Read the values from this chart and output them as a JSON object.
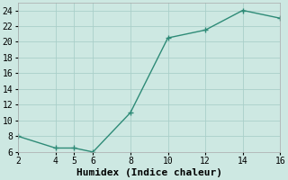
{
  "x": [
    2,
    4,
    5,
    6,
    8,
    10,
    12,
    14,
    16
  ],
  "y": [
    8,
    6.5,
    6.5,
    6,
    11,
    20.5,
    21.5,
    24,
    23
  ],
  "line_color": "#2e8b77",
  "marker": "+",
  "marker_size": 4,
  "marker_color": "#2e8b77",
  "xlabel": "Humidex (Indice chaleur)",
  "xlim": [
    2,
    16
  ],
  "ylim": [
    6,
    25
  ],
  "xticks": [
    2,
    4,
    5,
    6,
    8,
    10,
    12,
    14,
    16
  ],
  "yticks": [
    6,
    8,
    10,
    12,
    14,
    16,
    18,
    20,
    22,
    24
  ],
  "background_color": "#cde8e2",
  "grid_color": "#aacfc9",
  "font_family": "monospace",
  "xlabel_fontsize": 8,
  "tick_fontsize": 7,
  "linewidth": 1.0
}
